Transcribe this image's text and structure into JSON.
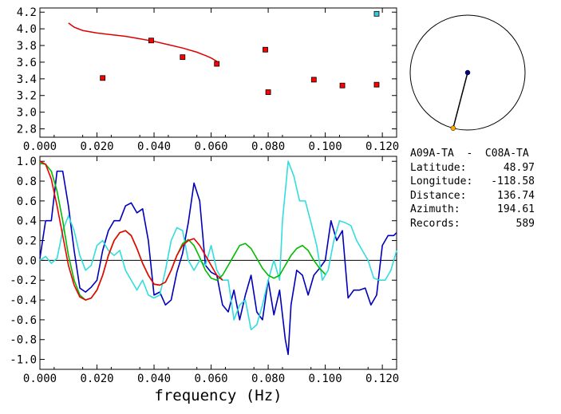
{
  "chart_data": [
    {
      "type": "scatter",
      "xlim": [
        0.0,
        0.125
      ],
      "ylim": [
        2.7,
        4.25
      ],
      "x_ticks": [
        "0.000",
        "0.020",
        "0.040",
        "0.060",
        "0.080",
        "0.100",
        "0.120"
      ],
      "y_ticks": [
        "2.8",
        "3.0",
        "3.2",
        "3.4",
        "3.6",
        "3.8",
        "4.0",
        "4.2"
      ],
      "points": [
        {
          "x": 0.022,
          "y": 3.41,
          "color": "#ff0000"
        },
        {
          "x": 0.039,
          "y": 3.86,
          "color": "#ff0000"
        },
        {
          "x": 0.05,
          "y": 3.66,
          "color": "#ff0000"
        },
        {
          "x": 0.062,
          "y": 3.58,
          "color": "#ff0000"
        },
        {
          "x": 0.079,
          "y": 3.75,
          "color": "#ff0000"
        },
        {
          "x": 0.08,
          "y": 3.24,
          "color": "#ff0000"
        },
        {
          "x": 0.096,
          "y": 3.39,
          "color": "#ff0000"
        },
        {
          "x": 0.106,
          "y": 3.32,
          "color": "#ff0000"
        },
        {
          "x": 0.118,
          "y": 3.33,
          "color": "#ff0000"
        },
        {
          "x": 0.118,
          "y": 4.18,
          "color": "#33ccdd"
        }
      ],
      "curve": {
        "color": "#dd0000",
        "x": [
          0.01,
          0.012,
          0.015,
          0.02,
          0.025,
          0.03,
          0.035,
          0.04,
          0.045,
          0.05,
          0.055,
          0.058,
          0.06,
          0.062
        ],
        "y": [
          4.07,
          4.02,
          3.98,
          3.95,
          3.93,
          3.91,
          3.88,
          3.85,
          3.81,
          3.77,
          3.72,
          3.68,
          3.65,
          3.61
        ]
      }
    },
    {
      "type": "line",
      "xlim": [
        0.0,
        0.125
      ],
      "ylim": [
        -1.1,
        1.05
      ],
      "x_ticks": [
        "0.000",
        "0.020",
        "0.040",
        "0.060",
        "0.080",
        "0.100",
        "0.120"
      ],
      "y_ticks": [
        "-1.0",
        "-0.8",
        "-0.6",
        "-0.4",
        "-0.2",
        "0.0",
        "0.2",
        "0.4",
        "0.6",
        "0.8",
        "1.0"
      ],
      "xlabel": "frequency (Hz)",
      "zero_line": true,
      "series": [
        {
          "color": "#0000bb",
          "x": [
            0.0,
            0.002,
            0.004,
            0.006,
            0.008,
            0.01,
            0.012,
            0.014,
            0.016,
            0.018,
            0.02,
            0.022,
            0.024,
            0.026,
            0.028,
            0.03,
            0.032,
            0.034,
            0.036,
            0.038,
            0.04,
            0.042,
            0.044,
            0.046,
            0.048,
            0.05,
            0.052,
            0.054,
            0.056,
            0.058,
            0.06,
            0.062,
            0.064,
            0.066,
            0.068,
            0.07,
            0.072,
            0.074,
            0.076,
            0.078,
            0.08,
            0.082,
            0.084,
            0.086,
            0.087,
            0.088,
            0.09,
            0.092,
            0.094,
            0.096,
            0.098,
            0.1,
            0.102,
            0.104,
            0.106,
            0.108,
            0.11,
            0.112,
            0.114,
            0.116,
            0.118,
            0.12,
            0.122,
            0.124,
            0.125
          ],
          "y": [
            0.02,
            0.4,
            0.4,
            0.9,
            0.9,
            0.55,
            0.1,
            -0.28,
            -0.32,
            -0.27,
            -0.2,
            0.1,
            0.3,
            0.4,
            0.4,
            0.55,
            0.58,
            0.48,
            0.52,
            0.2,
            -0.35,
            -0.32,
            -0.45,
            -0.4,
            -0.12,
            0.07,
            0.38,
            0.78,
            0.6,
            -0.05,
            -0.12,
            -0.15,
            -0.45,
            -0.52,
            -0.3,
            -0.6,
            -0.35,
            -0.15,
            -0.52,
            -0.6,
            -0.2,
            -0.55,
            -0.3,
            -0.8,
            -0.95,
            -0.45,
            -0.1,
            -0.15,
            -0.35,
            -0.15,
            -0.08,
            0.0,
            0.4,
            0.2,
            0.3,
            -0.38,
            -0.3,
            -0.3,
            -0.28,
            -0.45,
            -0.35,
            0.15,
            0.25,
            0.25,
            0.28
          ]
        },
        {
          "color": "#33dddd",
          "x": [
            0.0,
            0.002,
            0.004,
            0.006,
            0.008,
            0.01,
            0.012,
            0.014,
            0.016,
            0.018,
            0.02,
            0.022,
            0.024,
            0.026,
            0.028,
            0.03,
            0.032,
            0.034,
            0.036,
            0.038,
            0.04,
            0.042,
            0.044,
            0.046,
            0.048,
            0.05,
            0.052,
            0.054,
            0.056,
            0.058,
            0.06,
            0.062,
            0.064,
            0.066,
            0.068,
            0.07,
            0.072,
            0.074,
            0.076,
            0.078,
            0.08,
            0.082,
            0.084,
            0.085,
            0.087,
            0.089,
            0.091,
            0.093,
            0.095,
            0.097,
            0.099,
            0.101,
            0.103,
            0.105,
            0.107,
            0.109,
            0.111,
            0.113,
            0.115,
            0.117,
            0.119,
            0.121,
            0.123,
            0.125
          ],
          "y": [
            0.0,
            0.04,
            -0.03,
            0.02,
            0.3,
            0.45,
            0.3,
            0.05,
            -0.1,
            -0.05,
            0.15,
            0.2,
            0.1,
            0.05,
            0.1,
            -0.1,
            -0.2,
            -0.3,
            -0.2,
            -0.35,
            -0.38,
            -0.35,
            -0.1,
            0.2,
            0.33,
            0.3,
            0.0,
            -0.1,
            0.0,
            -0.05,
            0.15,
            -0.1,
            -0.2,
            -0.2,
            -0.6,
            -0.45,
            -0.4,
            -0.7,
            -0.65,
            -0.45,
            -0.2,
            0.0,
            -0.2,
            0.4,
            1.0,
            0.85,
            0.6,
            0.6,
            0.38,
            0.15,
            -0.2,
            -0.1,
            0.2,
            0.4,
            0.38,
            0.35,
            0.2,
            0.1,
            0.0,
            -0.18,
            -0.2,
            -0.2,
            -0.1,
            0.1
          ]
        },
        {
          "color": "#00bb00",
          "x": [
            0.0,
            0.002,
            0.004,
            0.006,
            0.008,
            0.01,
            0.012,
            0.014,
            0.016,
            0.018,
            0.02,
            0.022,
            0.024,
            0.026,
            0.028,
            0.03,
            0.032,
            0.034,
            0.036,
            0.038,
            0.04,
            0.042,
            0.044,
            0.046,
            0.048,
            0.05,
            0.052,
            0.054,
            0.056,
            0.058,
            0.06,
            0.062,
            0.064,
            0.066,
            0.068,
            0.07,
            0.072,
            0.074,
            0.076,
            0.078,
            0.08,
            0.082,
            0.084,
            0.086,
            0.088,
            0.09,
            0.092,
            0.094,
            0.096,
            0.098,
            0.1
          ],
          "y": [
            0.98,
            0.97,
            0.9,
            0.7,
            0.4,
            0.05,
            -0.2,
            -0.35,
            -0.4,
            -0.38,
            -0.3,
            -0.15,
            0.05,
            0.2,
            0.28,
            0.3,
            0.25,
            0.12,
            -0.03,
            -0.15,
            -0.24,
            -0.25,
            -0.22,
            -0.1,
            0.05,
            0.17,
            0.21,
            0.15,
            0.03,
            -0.1,
            -0.18,
            -0.2,
            -0.15,
            -0.05,
            0.05,
            0.15,
            0.17,
            0.12,
            0.02,
            -0.08,
            -0.15,
            -0.18,
            -0.15,
            -0.05,
            0.05,
            0.12,
            0.15,
            0.1,
            0.0,
            -0.08,
            -0.14
          ]
        },
        {
          "color": "#ee0000",
          "x": [
            0.0,
            0.002,
            0.004,
            0.006,
            0.008,
            0.01,
            0.012,
            0.014,
            0.016,
            0.018,
            0.02,
            0.022,
            0.024,
            0.026,
            0.028,
            0.03,
            0.032,
            0.034,
            0.036,
            0.038,
            0.04,
            0.042,
            0.044,
            0.046,
            0.048,
            0.05,
            0.052,
            0.054,
            0.056,
            0.058,
            0.06,
            0.062,
            0.064
          ],
          "y": [
            1.0,
            0.97,
            0.82,
            0.55,
            0.25,
            -0.05,
            -0.25,
            -0.37,
            -0.4,
            -0.38,
            -0.3,
            -0.15,
            0.05,
            0.2,
            0.28,
            0.3,
            0.25,
            0.12,
            -0.03,
            -0.15,
            -0.24,
            -0.25,
            -0.22,
            -0.1,
            0.05,
            0.15,
            0.2,
            0.22,
            0.15,
            0.05,
            -0.05,
            -0.15,
            -0.2
          ]
        }
      ]
    }
  ],
  "map": {
    "center_color": "#000080",
    "endpoint_color": "#ffaa00",
    "azimuth_deg": 194.61
  },
  "info": {
    "title": "A09A-TA  -  C08A-TA",
    "rows": [
      {
        "label": "Latitude:",
        "value": "48.97"
      },
      {
        "label": "Longitude:",
        "value": "-118.58"
      },
      {
        "label": "Distance:",
        "value": "136.74"
      },
      {
        "label": "Azimuth:",
        "value": "194.61"
      },
      {
        "label": "Records:",
        "value": "589"
      }
    ]
  }
}
